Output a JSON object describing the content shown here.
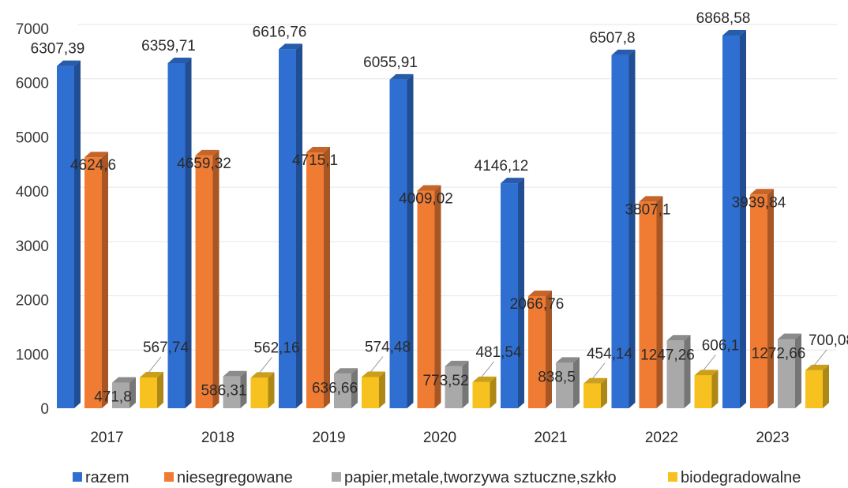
{
  "chart_data": {
    "type": "bar",
    "categories": [
      "2017",
      "2018",
      "2019",
      "2020",
      "2021",
      "2022",
      "2023"
    ],
    "series": [
      {
        "name": "razem",
        "color": "#2f6fd1",
        "values": [
          6307.39,
          6359.71,
          6616.76,
          6055.91,
          4146.12,
          6507.8,
          6868.58
        ],
        "labels": [
          "6307,39",
          "6359,71",
          "6616,76",
          "6055,91",
          "4146,12",
          "6507,8",
          "6868,58"
        ]
      },
      {
        "name": "niesegregowane",
        "color": "#f07b33",
        "values": [
          4624.6,
          4659.32,
          4715.1,
          4009.02,
          2066.76,
          3807.1,
          3939.84
        ],
        "labels": [
          "4624,6",
          "4659,32",
          "4715,1",
          "4009,02",
          "2066,76",
          "3807,1",
          "3939,84"
        ]
      },
      {
        "name": "papier,metale,tworzywa sztuczne,szkło",
        "color": "#a9a9a9",
        "values": [
          471.8,
          586.31,
          636.66,
          773.52,
          838.5,
          1247.26,
          1272.66
        ],
        "labels": [
          "471,8",
          "586,31",
          "636,66",
          "773,52",
          "838,5",
          "1247,26",
          "1272,66"
        ]
      },
      {
        "name": "biodegradowalne",
        "color": "#f7c21f",
        "values": [
          567.74,
          562.16,
          574.48,
          481.54,
          454.14,
          606.1,
          700.08
        ],
        "labels": [
          "567,74",
          "562,16",
          "574,48",
          "481,54",
          "454,14",
          "606,1",
          "700,08"
        ]
      }
    ],
    "y_ticks": [
      "0",
      "1000",
      "2000",
      "3000",
      "4000",
      "5000",
      "6000",
      "7000"
    ],
    "ylim": [
      0,
      7000
    ],
    "grid": true,
    "legend_position": "bottom",
    "title": "",
    "xlabel": "",
    "ylabel": ""
  }
}
